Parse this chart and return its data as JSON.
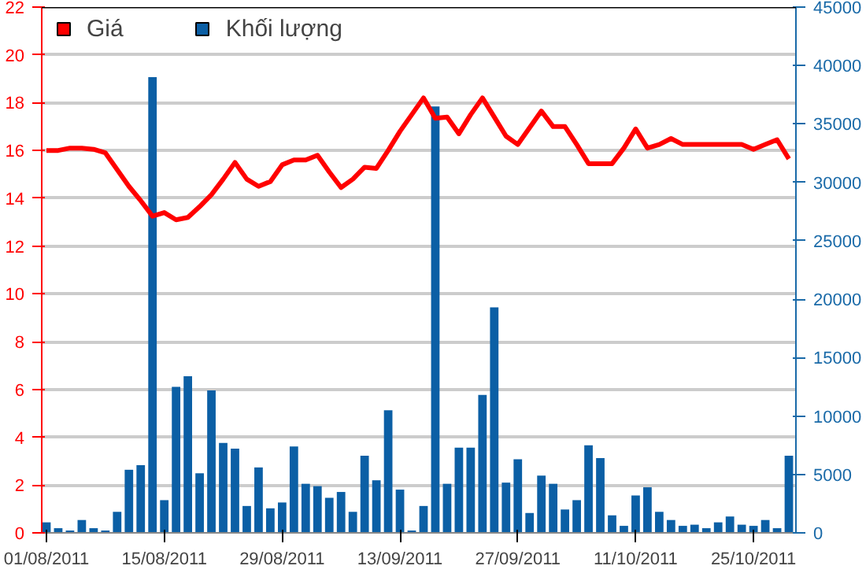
{
  "chart_data": {
    "type": "bar",
    "categories": [
      "01/08/2011",
      null,
      null,
      null,
      null,
      null,
      null,
      null,
      null,
      null,
      "15/08/2011",
      null,
      null,
      null,
      null,
      null,
      null,
      null,
      null,
      null,
      "29/08/2011",
      null,
      null,
      null,
      null,
      null,
      null,
      null,
      null,
      null,
      "13/09/2011",
      null,
      null,
      null,
      null,
      null,
      null,
      null,
      null,
      null,
      "27/09/2011",
      null,
      null,
      null,
      null,
      null,
      null,
      null,
      null,
      null,
      "11/10/2011",
      null,
      null,
      null,
      null,
      null,
      null,
      null,
      null,
      null,
      "25/10/2011",
      null,
      null,
      null
    ],
    "series": [
      {
        "name": "Giá",
        "type": "line",
        "color": "#ff0000",
        "values": [
          16.0,
          16.0,
          16.1,
          16.1,
          16.05,
          15.9,
          15.2,
          14.5,
          13.9,
          13.25,
          13.4,
          13.1,
          13.2,
          13.65,
          14.15,
          14.8,
          15.5,
          14.8,
          14.5,
          14.7,
          15.4,
          15.6,
          15.6,
          15.8,
          15.1,
          14.45,
          14.8,
          15.3,
          15.25,
          16.0,
          16.8,
          17.5,
          18.2,
          17.35,
          17.4,
          16.7,
          17.5,
          18.2,
          17.4,
          16.6,
          16.25,
          16.95,
          17.65,
          17.0,
          17.0,
          16.25,
          15.45,
          15.45,
          15.45,
          16.1,
          16.9,
          16.1,
          16.25,
          16.5,
          16.25,
          16.25,
          16.25,
          16.25,
          16.25,
          16.25,
          16.05,
          16.25,
          16.45,
          15.65
        ]
      },
      {
        "name": "Khối lượng",
        "axis": "y2",
        "color": "#0b5fa5",
        "values": [
          900,
          400,
          200,
          1100,
          400,
          200,
          1800,
          5400,
          5800,
          39000,
          2800,
          12500,
          13400,
          5100,
          12200,
          7700,
          7200,
          2300,
          5600,
          2100,
          2600,
          7400,
          4200,
          4000,
          3000,
          3500,
          1800,
          6600,
          4500,
          10500,
          3700,
          200,
          2300,
          36500,
          4200,
          7300,
          7300,
          11800,
          19300,
          4300,
          6300,
          1700,
          4900,
          4200,
          2000,
          2800,
          7500,
          6400,
          1500,
          600,
          3200,
          3900,
          1800,
          1100,
          600,
          700,
          400,
          900,
          1400,
          700,
          600,
          1100,
          400,
          6600
        ]
      }
    ],
    "ylim": [
      0,
      22
    ],
    "yticks": [
      0,
      2,
      4,
      6,
      8,
      10,
      12,
      14,
      16,
      18,
      20,
      22
    ],
    "y2lim": [
      0,
      45000
    ],
    "y2ticks": [
      0,
      5000,
      10000,
      15000,
      20000,
      25000,
      30000,
      35000,
      40000,
      45000
    ],
    "grid": "y",
    "legend": "top left"
  }
}
